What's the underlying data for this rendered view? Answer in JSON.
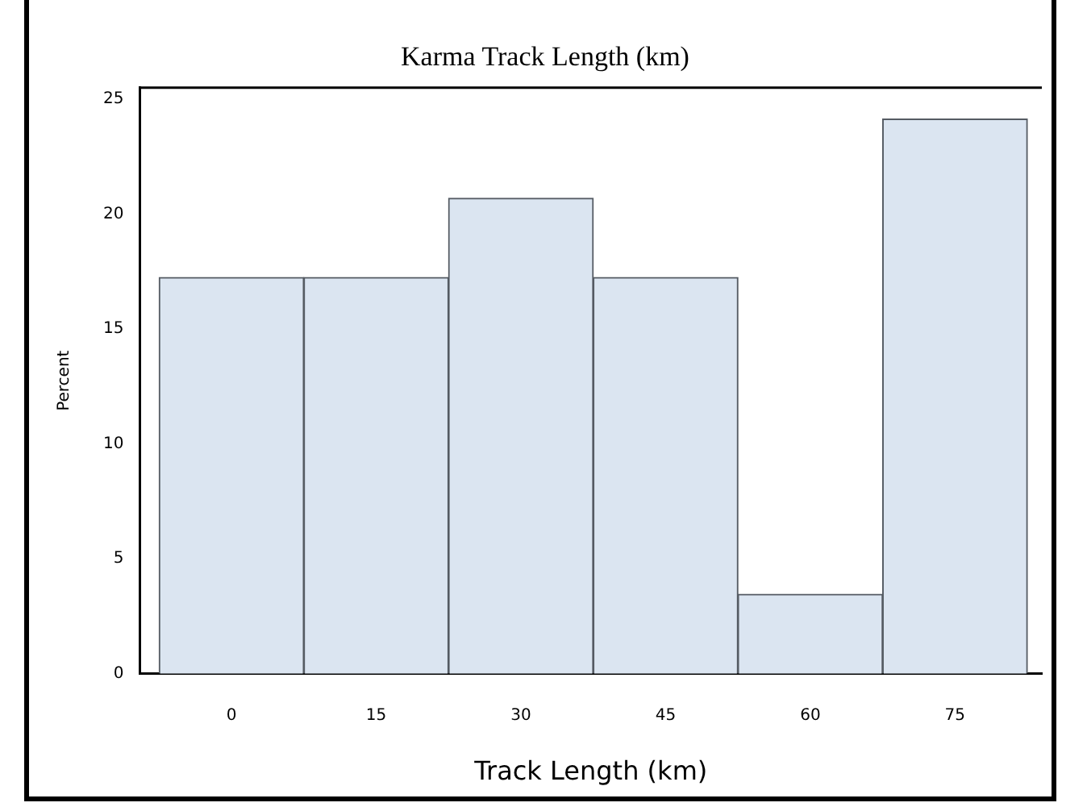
{
  "chart_data": {
    "type": "histogram",
    "title": "Karma Track Length (km)",
    "xlabel": "Track Length (km)",
    "ylabel": "Percent",
    "bins": [
      -7.5,
      7.5,
      22.5,
      37.5,
      52.5,
      67.5,
      82.5
    ],
    "values": [
      17.24,
      17.24,
      20.69,
      17.24,
      3.45,
      24.14
    ],
    "color": "#dbe5f1",
    "xlim": [
      -9.5,
      84
    ],
    "xticks": [
      0,
      15,
      30,
      45,
      60,
      75
    ],
    "ylim": [
      0,
      25.5
    ],
    "yticks": [
      0,
      5,
      10,
      15,
      20,
      25
    ],
    "grid": false,
    "legend": false
  }
}
